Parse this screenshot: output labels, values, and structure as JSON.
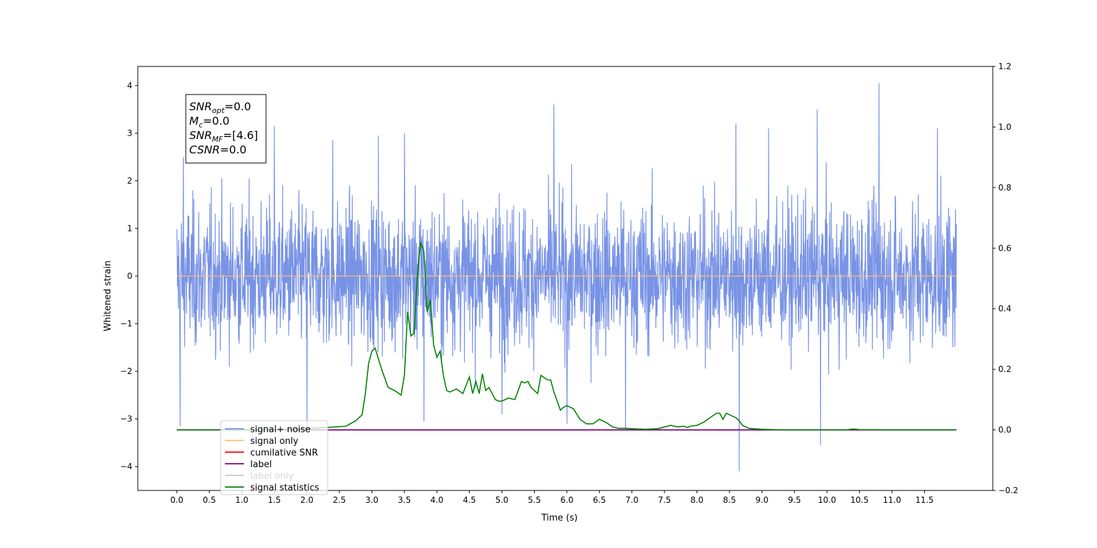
{
  "chart_data": {
    "type": "line",
    "xlabel": "Time (s)",
    "ylabel": "Whitened strain",
    "xlim": [
      -0.6,
      12.55
    ],
    "ylim": [
      -4.5,
      4.4
    ],
    "y2lim": [
      -0.2,
      1.2
    ],
    "x_ticks": [
      0.0,
      0.5,
      1.0,
      1.5,
      2.0,
      2.5,
      3.0,
      3.5,
      4.0,
      4.5,
      5.0,
      5.5,
      6.0,
      6.5,
      7.0,
      7.5,
      8.0,
      8.5,
      9.0,
      9.5,
      10.0,
      10.5,
      11.0,
      11.5
    ],
    "x_tick_labels": [
      "0.0",
      "0.5",
      "1.0",
      "1.5",
      "2.0",
      "2.5",
      "3.0",
      "3.5",
      "4.0",
      "4.5",
      "5.0",
      "5.5",
      "6.0",
      "6.5",
      "7.0",
      "7.5",
      "8.0",
      "8.5",
      "9.0",
      "9.5",
      "10.0",
      "10.5",
      "11.0",
      "11.5"
    ],
    "y_ticks": [
      -4,
      -3,
      -2,
      -1,
      0,
      1,
      2,
      3,
      4
    ],
    "y_tick_labels": [
      "−4",
      "−3",
      "−2",
      "−1",
      "0",
      "1",
      "2",
      "3",
      "4"
    ],
    "y2_ticks": [
      -0.2,
      0.0,
      0.2,
      0.4,
      0.6,
      0.8,
      1.0,
      1.2
    ],
    "y2_tick_labels": [
      "−0.2",
      "0.0",
      "0.2",
      "0.4",
      "0.6",
      "0.8",
      "1.0",
      "1.2"
    ],
    "grid": false,
    "legend_position": "lower-left",
    "legend": [
      {
        "label": "signal+ noise",
        "color": "#7893e6"
      },
      {
        "label": "signal only",
        "color": "#ffc266"
      },
      {
        "label": "cumilative SNR",
        "color": "#ff0000"
      },
      {
        "label": "label",
        "color": "#800080"
      },
      {
        "label": "label only",
        "color": "#c8c8c8"
      },
      {
        "label": "signal statistics",
        "color": "#008000"
      }
    ],
    "annotation": {
      "lines": [
        {
          "main": "SNR",
          "sub": "opt",
          "rest": "=0.0"
        },
        {
          "main": "M",
          "sub": "c",
          "rest": "=0.0"
        },
        {
          "main": "SNR",
          "sub": "MF",
          "rest": "=[4.6]"
        },
        {
          "main": "CSNR",
          "sub": "",
          "rest": "=0.0"
        }
      ]
    },
    "series": [
      {
        "name": "signal+ noise",
        "axis": "left",
        "color": "#7893e6",
        "x_range": [
          0.0,
          11.99
        ],
        "amplitude_envelope": [
          -2.6,
          2.6
        ],
        "spikes": [
          [
            0.05,
            -3.15
          ],
          [
            0.1,
            2.5
          ],
          [
            1.5,
            3.15
          ],
          [
            2.0,
            -3.2
          ],
          [
            2.4,
            2.85
          ],
          [
            3.1,
            2.95
          ],
          [
            3.5,
            3.0
          ],
          [
            3.8,
            -3.05
          ],
          [
            5.0,
            -2.9
          ],
          [
            5.8,
            3.6
          ],
          [
            6.0,
            -3.1
          ],
          [
            6.9,
            -3.2
          ],
          [
            8.6,
            3.2
          ],
          [
            8.65,
            -4.1
          ],
          [
            9.1,
            3.1
          ],
          [
            9.85,
            3.5
          ],
          [
            9.9,
            -3.55
          ],
          [
            10.8,
            4.05
          ],
          [
            11.7,
            3.1
          ]
        ]
      },
      {
        "name": "signal only",
        "axis": "left",
        "color": "#ffc266",
        "x": [
          0.0,
          11.99
        ],
        "y": [
          0.0,
          0.0
        ]
      },
      {
        "name": "label",
        "axis": "right",
        "color": "#800080",
        "x": [
          0.0,
          11.99
        ],
        "y": [
          0.0,
          0.0
        ]
      },
      {
        "name": "signal statistics",
        "axis": "right",
        "color": "#008000",
        "x": [
          0.0,
          0.5,
          1.0,
          1.5,
          2.0,
          2.3,
          2.45,
          2.6,
          2.75,
          2.85,
          2.9,
          2.95,
          3.0,
          3.05,
          3.15,
          3.25,
          3.35,
          3.45,
          3.5,
          3.55,
          3.6,
          3.65,
          3.7,
          3.75,
          3.8,
          3.85,
          3.9,
          3.95,
          4.0,
          4.05,
          4.1,
          4.15,
          4.2,
          4.3,
          4.4,
          4.5,
          4.55,
          4.6,
          4.65,
          4.7,
          4.75,
          4.8,
          4.9,
          4.95,
          5.0,
          5.1,
          5.2,
          5.3,
          5.35,
          5.4,
          5.45,
          5.5,
          5.55,
          5.6,
          5.7,
          5.75,
          5.8,
          5.9,
          5.95,
          6.0,
          6.1,
          6.2,
          6.3,
          6.4,
          6.5,
          6.6,
          6.7,
          6.8,
          6.9,
          7.0,
          7.2,
          7.4,
          7.6,
          7.7,
          7.8,
          7.85,
          7.9,
          8.0,
          8.1,
          8.2,
          8.3,
          8.35,
          8.4,
          8.45,
          8.5,
          8.6,
          8.65,
          8.7,
          8.8,
          9.0,
          9.3,
          10.0,
          10.3,
          10.4,
          10.5,
          11.0,
          11.99
        ],
        "y": [
          0.0,
          0.0,
          0.0,
          0.0,
          0.005,
          0.008,
          0.01,
          0.012,
          0.03,
          0.05,
          0.12,
          0.22,
          0.26,
          0.27,
          0.2,
          0.14,
          0.13,
          0.115,
          0.18,
          0.39,
          0.31,
          0.32,
          0.51,
          0.62,
          0.59,
          0.39,
          0.43,
          0.28,
          0.24,
          0.26,
          0.18,
          0.13,
          0.125,
          0.135,
          0.12,
          0.175,
          0.12,
          0.16,
          0.12,
          0.185,
          0.13,
          0.14,
          0.1,
          0.095,
          0.095,
          0.105,
          0.1,
          0.16,
          0.155,
          0.16,
          0.14,
          0.13,
          0.12,
          0.18,
          0.165,
          0.165,
          0.125,
          0.065,
          0.075,
          0.08,
          0.07,
          0.035,
          0.02,
          0.02,
          0.035,
          0.025,
          0.01,
          0.005,
          0.005,
          0.004,
          0.002,
          0.004,
          0.015,
          0.01,
          0.012,
          0.008,
          0.012,
          0.015,
          0.025,
          0.04,
          0.055,
          0.055,
          0.035,
          0.055,
          0.05,
          0.04,
          0.03,
          0.015,
          0.005,
          0.002,
          0.0,
          0.0,
          0.0,
          0.003,
          0.001,
          0.0,
          0.0
        ]
      }
    ]
  }
}
